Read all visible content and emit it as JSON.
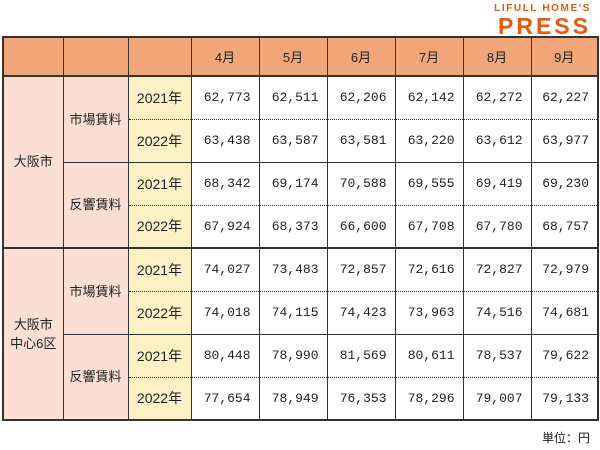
{
  "logo": {
    "top": "LIFULL HOME'S",
    "bottom": "PRESS"
  },
  "unit_note": "単位：円",
  "colors": {
    "logo_orange": "#E8590F",
    "header_bg": "#F0A678",
    "region_bg": "#FBDED4",
    "year_bg": "#FDF2C6",
    "border": "#333333"
  },
  "chart_data": {
    "type": "table",
    "unit": "円",
    "columns": [
      "4月",
      "5月",
      "6月",
      "7月",
      "8月",
      "9月"
    ],
    "row_groups": [
      {
        "region": "大阪市",
        "region_display": "大阪市",
        "sections": [
          {
            "rent_type": "市場賃料",
            "rows": [
              {
                "year": "2021年",
                "values": [
                  62773,
                  62511,
                  62206,
                  62142,
                  62272,
                  62227
                ]
              },
              {
                "year": "2022年",
                "values": [
                  63438,
                  63587,
                  63581,
                  63220,
                  63612,
                  63977
                ]
              }
            ]
          },
          {
            "rent_type": "反響賃料",
            "rows": [
              {
                "year": "2021年",
                "values": [
                  68342,
                  69174,
                  70588,
                  69555,
                  69419,
                  69230
                ]
              },
              {
                "year": "2022年",
                "values": [
                  67924,
                  68373,
                  66600,
                  67708,
                  67780,
                  68757
                ]
              }
            ]
          }
        ]
      },
      {
        "region": "大阪市中心6区",
        "region_display": "大阪市\n中心6区",
        "sections": [
          {
            "rent_type": "市場賃料",
            "rows": [
              {
                "year": "2021年",
                "values": [
                  74027,
                  73483,
                  72857,
                  72616,
                  72827,
                  72979
                ]
              },
              {
                "year": "2022年",
                "values": [
                  74018,
                  74115,
                  74423,
                  73963,
                  74516,
                  74681
                ]
              }
            ]
          },
          {
            "rent_type": "反響賃料",
            "rows": [
              {
                "year": "2021年",
                "values": [
                  80448,
                  78990,
                  81569,
                  80611,
                  78537,
                  79622
                ]
              },
              {
                "year": "2022年",
                "values": [
                  77654,
                  78949,
                  76353,
                  78296,
                  79007,
                  79133
                ]
              }
            ]
          }
        ]
      }
    ]
  }
}
